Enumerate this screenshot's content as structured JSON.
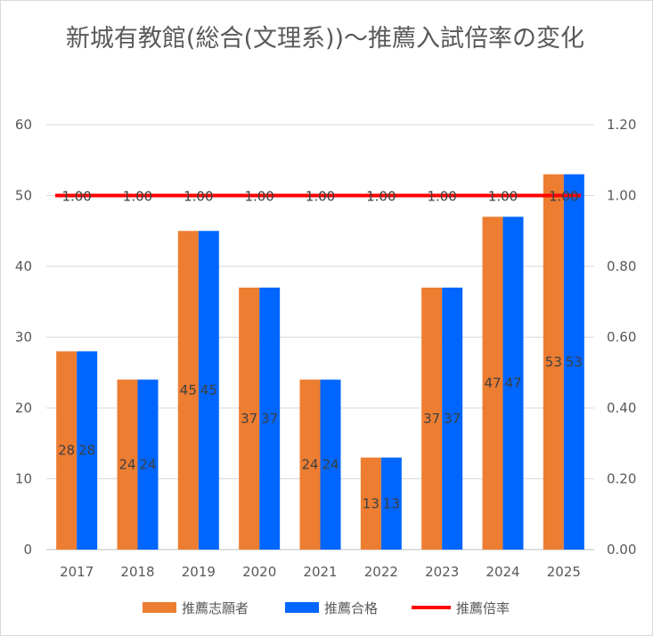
{
  "chart_data": {
    "type": "bar",
    "title": "新城有教館(総合(文理系))〜推薦入試倍率の変化",
    "categories": [
      "2017",
      "2018",
      "2019",
      "2020",
      "2021",
      "2022",
      "2023",
      "2024",
      "2025"
    ],
    "series": [
      {
        "name": "推薦志願者",
        "type": "bar",
        "axis": "left",
        "color": "#ED7D31",
        "values": [
          28,
          24,
          45,
          37,
          24,
          13,
          37,
          47,
          53
        ]
      },
      {
        "name": "推薦合格",
        "type": "bar",
        "axis": "left",
        "color": "#0066FF",
        "values": [
          28,
          24,
          45,
          37,
          24,
          13,
          37,
          47,
          53
        ]
      },
      {
        "name": "推薦倍率",
        "type": "line",
        "axis": "right",
        "color": "#FF0000",
        "values": [
          1.0,
          1.0,
          1.0,
          1.0,
          1.0,
          1.0,
          1.0,
          1.0,
          1.0
        ],
        "labels": [
          "1.00",
          "1.00",
          "1.00",
          "1.00",
          "1.00",
          "1.00",
          "1.00",
          "1.00",
          "1.00"
        ]
      }
    ],
    "y_left": {
      "ylim": [
        0,
        60
      ],
      "ticks": [
        "0",
        "10",
        "20",
        "30",
        "40",
        "50",
        "60"
      ]
    },
    "y_right": {
      "ylim": [
        0,
        1.2
      ],
      "ticks": [
        "0.00",
        "0.20",
        "0.40",
        "0.60",
        "0.80",
        "1.00",
        "1.20"
      ]
    },
    "grid": true,
    "legend": "bottom"
  }
}
